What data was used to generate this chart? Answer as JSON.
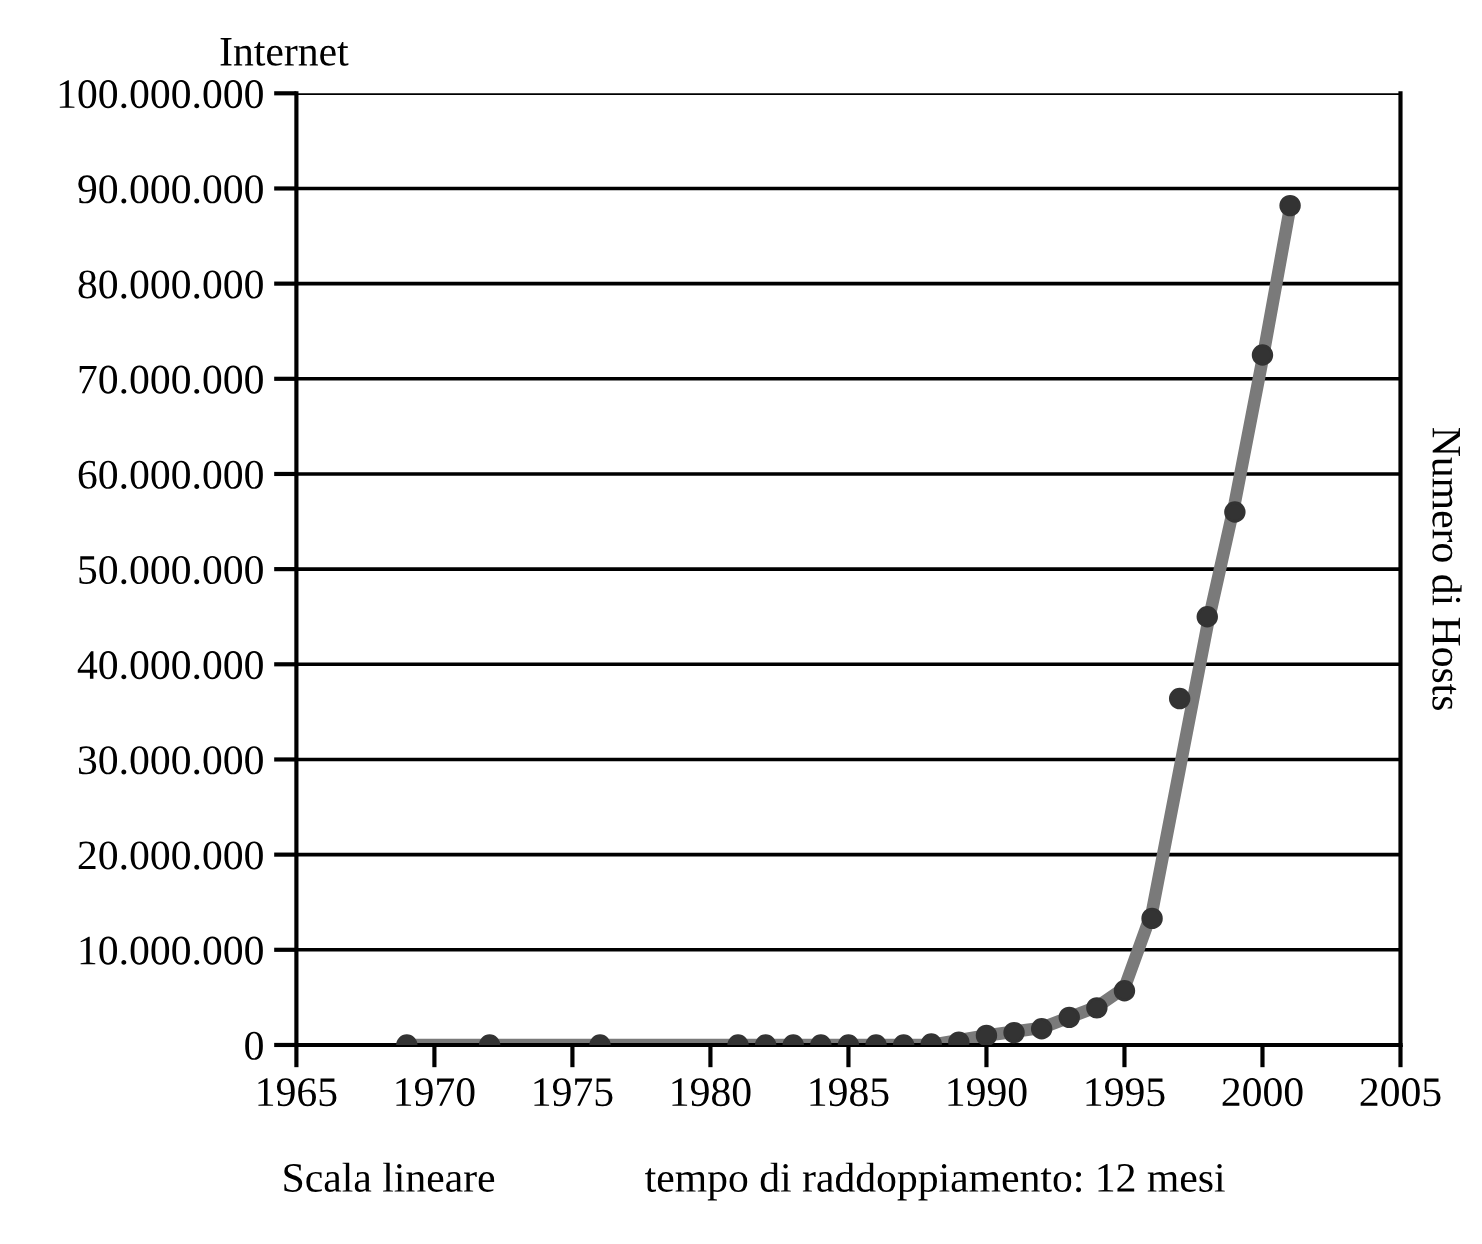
{
  "chart_data": {
    "type": "scatter",
    "title": "Internet",
    "ylabel": "Numero di Hosts",
    "annotations": [
      "Scala lineare",
      "tempo di raddoppiamento: 12 mesi"
    ],
    "series": [
      {
        "type": "line",
        "marker": "none",
        "color": "#7a7a7a",
        "x": [
          1969,
          1988,
          1990,
          1992,
          1994,
          1995,
          1996,
          1997,
          1998,
          1999,
          2000,
          2001
        ],
        "values": [
          0,
          0,
          1000000,
          1800000,
          4000000,
          6000000,
          14000000,
          29000000,
          44000000,
          57000000,
          72000000,
          88000000
        ]
      },
      {
        "color": "#333333",
        "x": [
          1969,
          1972,
          1976,
          1981,
          1982,
          1983,
          1984,
          1985,
          1986,
          1987,
          1988,
          1989,
          1990,
          1991,
          1992,
          1993,
          1994,
          1995,
          1996,
          1997,
          1998,
          1999,
          2000,
          2001
        ],
        "values": [
          0,
          0,
          0,
          0,
          0,
          0,
          0,
          0,
          0,
          0,
          100000,
          300000,
          1000000,
          1300000,
          1700000,
          2900000,
          3900000,
          5700000,
          13300000,
          36400000,
          45000000,
          56000000,
          72500000,
          88200000
        ]
      }
    ],
    "xlim": [
      1965,
      2005
    ],
    "xticks": [
      1965,
      1970,
      1975,
      1980,
      1985,
      1990,
      1995,
      2000,
      2005
    ],
    "ylim": [
      0,
      100000000
    ],
    "yticks": [
      {
        "value": 0,
        "label": "0"
      },
      {
        "value": 10000000,
        "label": "10.000.000"
      },
      {
        "value": 20000000,
        "label": "20.000.000"
      },
      {
        "value": 30000000,
        "label": "30.000.000"
      },
      {
        "value": 40000000,
        "label": "40.000.000"
      },
      {
        "value": 50000000,
        "label": "50.000.000"
      },
      {
        "value": 60000000,
        "label": "60.000.000"
      },
      {
        "value": 70000000,
        "label": "70.000.000"
      },
      {
        "value": 80000000,
        "label": "80.000.000"
      },
      {
        "value": 90000000,
        "label": "90.000.000"
      },
      {
        "value": 100000000,
        "label": "100.000.000"
      }
    ],
    "grid": "y",
    "marker": "circle"
  }
}
